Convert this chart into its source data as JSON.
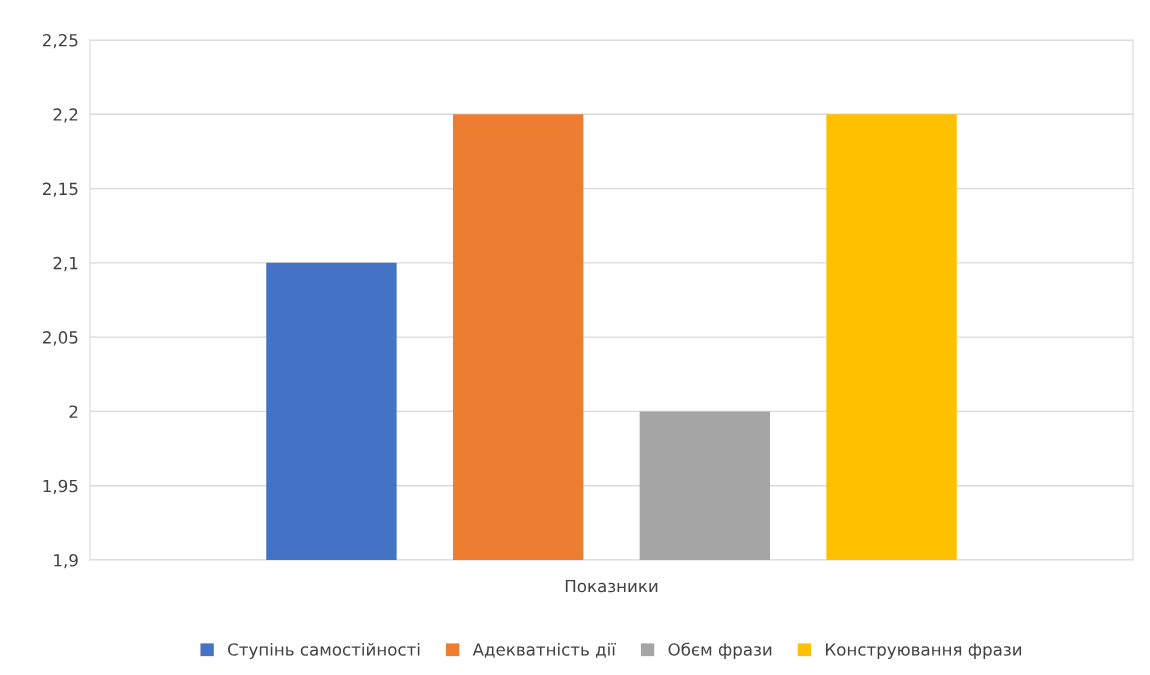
{
  "chart_data": {
    "type": "bar",
    "categories": [
      "Показники"
    ],
    "series": [
      {
        "name": "Ступінь самостійності",
        "color": "#4472c4",
        "values": [
          2.1
        ]
      },
      {
        "name": "Адекватність дії",
        "color": "#ed7d31",
        "values": [
          2.2
        ]
      },
      {
        "name": "Обєм фрази",
        "color": "#a5a5a5",
        "values": [
          2.0
        ]
      },
      {
        "name": "Конструювання фрази",
        "color": "#ffc000",
        "values": [
          2.2
        ]
      }
    ],
    "ylim": [
      1.9,
      2.25
    ],
    "yticks": [
      {
        "value": 1.9,
        "label": "1,9"
      },
      {
        "value": 1.95,
        "label": "1,95"
      },
      {
        "value": 2,
        "label": "2"
      },
      {
        "value": 2.05,
        "label": "2,05"
      },
      {
        "value": 2.1,
        "label": "2,1"
      },
      {
        "value": 2.15,
        "label": "2,15"
      },
      {
        "value": 2.2,
        "label": "2,2"
      },
      {
        "value": 2.25,
        "label": "2,25"
      }
    ],
    "grid": "y",
    "legend": "bottom"
  }
}
